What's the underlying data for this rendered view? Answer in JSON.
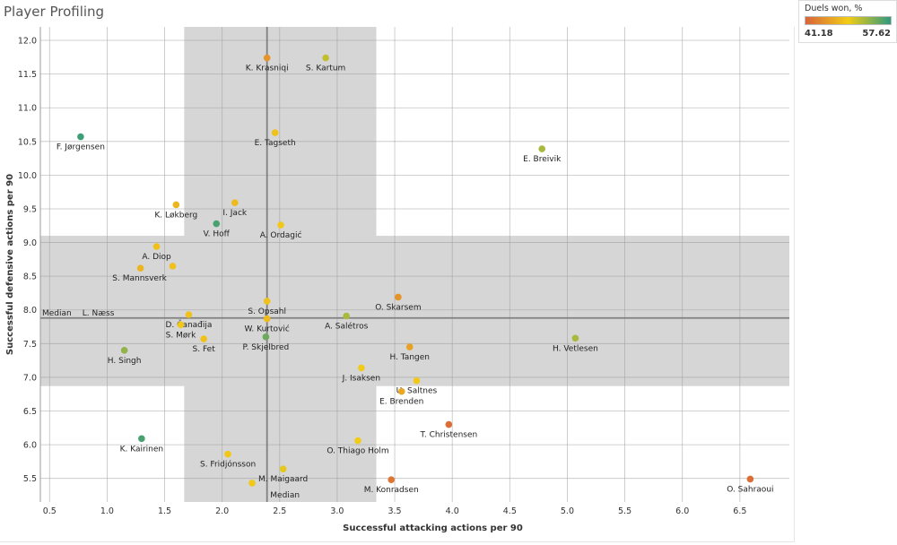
{
  "title": "Player Profiling",
  "legend": {
    "title": "Duels won, %",
    "min": "41.18",
    "max": "57.62",
    "color_low": "#d9643a",
    "color_mid": "#f2cc16",
    "color_high": "#2f9a7e"
  },
  "colors": {
    "band": "#d6d6d6",
    "grid": "#9a9a9a",
    "median_line": "#808080"
  },
  "chart_data": {
    "type": "scatter",
    "title": "Player Profiling",
    "xlabel": "Successful attacking actions per 90",
    "ylabel": "Successful defensive actions per 90",
    "xlim": [
      0.42,
      6.93
    ],
    "ylim": [
      5.15,
      12.2
    ],
    "xticks": [
      "0.5",
      "1.0",
      "1.5",
      "2.0",
      "2.5",
      "3.0",
      "3.5",
      "4.0",
      "4.5",
      "5.0",
      "5.5",
      "6.0",
      "6.5"
    ],
    "yticks": [
      "5.5",
      "6.0",
      "6.5",
      "7.0",
      "7.5",
      "8.0",
      "8.5",
      "9.0",
      "9.5",
      "10.0",
      "10.5",
      "11.0",
      "11.5",
      "12.0"
    ],
    "median_x": 2.39,
    "median_y": 7.88,
    "median_x_label": "Median",
    "median_y_label": "Median",
    "vertical_band": {
      "x0": 1.67,
      "x1": 3.34,
      "y0": 5.15,
      "y1": 12.2
    },
    "horizontal_band": {
      "x0": 0.42,
      "x1": 6.93,
      "y0": 6.87,
      "y1": 9.1
    },
    "color_metric": "Duels won, %",
    "points": [
      {
        "name": "K. Krasniqi",
        "x": 2.39,
        "y": 11.74,
        "duels": 45.0
      },
      {
        "name": "S. Kartum",
        "x": 2.9,
        "y": 11.74,
        "duels": 51.5
      },
      {
        "name": "F. Jørgensen",
        "x": 0.77,
        "y": 10.57,
        "duels": 57.0
      },
      {
        "name": "E. Tagseth",
        "x": 2.46,
        "y": 10.63,
        "duels": 48.5
      },
      {
        "name": "E. Breivik",
        "x": 4.78,
        "y": 10.39,
        "duels": 52.5
      },
      {
        "name": "K. Løkberg",
        "x": 1.6,
        "y": 9.56,
        "duels": 47.5
      },
      {
        "name": "I. Jack",
        "x": 2.11,
        "y": 9.59,
        "duels": 48.0
      },
      {
        "name": "V. Hoff",
        "x": 1.95,
        "y": 9.28,
        "duels": 56.5
      },
      {
        "name": "A. Ordagić",
        "x": 2.51,
        "y": 9.26,
        "duels": 49.0
      },
      {
        "name": "A. Diop",
        "x": 1.43,
        "y": 8.94,
        "duels": 48.5
      },
      {
        "name": "S. Mannsverk",
        "x": 1.29,
        "y": 8.62,
        "duels": 47.5
      },
      {
        "name": "",
        "x": 1.57,
        "y": 8.65,
        "duels": 48.5
      },
      {
        "name": "Median",
        "x": 0.8,
        "y": 8.1,
        "duels": 48.5
      },
      {
        "name": "L. Næss",
        "x": 0.8,
        "y": 8.1,
        "duels": 48.5,
        "skip_dot": true
      },
      {
        "name": "S. Opsahl",
        "x": 2.39,
        "y": 8.13,
        "duels": 48.5
      },
      {
        "name": "O. Skarsem",
        "x": 3.53,
        "y": 8.19,
        "duels": 45.0
      },
      {
        "name": "D. Čanađija",
        "x": 1.71,
        "y": 7.93,
        "duels": 48.5
      },
      {
        "name": "W. Kurtović",
        "x": 2.39,
        "y": 7.87,
        "duels": 48.0
      },
      {
        "name": "A. Salétros",
        "x": 3.08,
        "y": 7.91,
        "duels": 52.5
      },
      {
        "name": "S. Mørk",
        "x": 1.64,
        "y": 7.78,
        "duels": 49.0
      },
      {
        "name": "P. Skjelbred",
        "x": 2.38,
        "y": 7.6,
        "duels": 55.0
      },
      {
        "name": "S. Fet",
        "x": 1.84,
        "y": 7.57,
        "duels": 48.5
      },
      {
        "name": "H. Vetlesen",
        "x": 5.07,
        "y": 7.58,
        "duels": 52.5
      },
      {
        "name": "H. Singh",
        "x": 1.15,
        "y": 7.4,
        "duels": 53.5
      },
      {
        "name": "H. Tangen",
        "x": 3.63,
        "y": 7.45,
        "duels": 46.0
      },
      {
        "name": "J. Isaksen",
        "x": 3.21,
        "y": 7.14,
        "duels": 49.5
      },
      {
        "name": "U. Saltnes",
        "x": 3.69,
        "y": 6.95,
        "duels": 49.0
      },
      {
        "name": "E. Brenden",
        "x": 3.56,
        "y": 6.79,
        "duels": 46.5
      },
      {
        "name": "T. Christensen",
        "x": 3.97,
        "y": 6.3,
        "duels": 42.0
      },
      {
        "name": "K. Kairinen",
        "x": 1.3,
        "y": 6.09,
        "duels": 56.5
      },
      {
        "name": "O. Thiago Holm",
        "x": 3.18,
        "y": 6.06,
        "duels": 49.5
      },
      {
        "name": "S. Fridjónsson",
        "x": 2.05,
        "y": 5.86,
        "duels": 49.0
      },
      {
        "name": "M. Maigaard",
        "x": 2.53,
        "y": 5.64,
        "duels": 50.0
      },
      {
        "name": "M. Konradsen",
        "x": 3.47,
        "y": 5.48,
        "duels": 42.5
      },
      {
        "name": "",
        "x": 2.26,
        "y": 5.43,
        "duels": 49.0
      },
      {
        "name": "O. Sahraoui",
        "x": 6.59,
        "y": 5.49,
        "duels": 42.0
      }
    ]
  }
}
